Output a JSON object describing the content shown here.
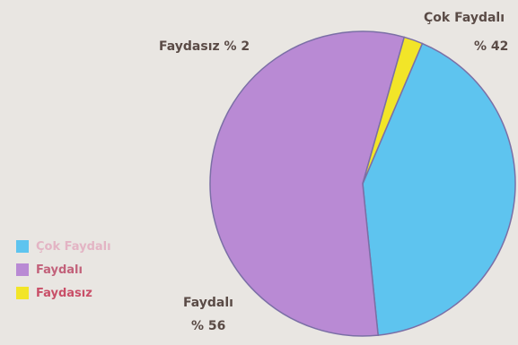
{
  "chart_data": {
    "type": "pie",
    "slices": [
      {
        "label": "Çok Faydalı",
        "value": 42,
        "color": "#5ec4ef",
        "label_text": "Çok Faydalı",
        "percent_text": "% 42"
      },
      {
        "label": "Faydalı",
        "value": 56,
        "color": "#b98ad4",
        "label_text": "Faydalı",
        "percent_text": "% 56"
      },
      {
        "label": "Faydasız",
        "value": 2,
        "color": "#f2e528",
        "label_text": "Faydasız % 2",
        "percent_text": ""
      }
    ],
    "legend": [
      {
        "label": "Çok Faydalı",
        "color": "#5ec4ef",
        "text_color": "#e3b4c4"
      },
      {
        "label": "Faydalı",
        "color": "#b98ad4",
        "text_color": "#c2617a"
      },
      {
        "label": "Faydasız",
        "color": "#f2e528",
        "text_color": "#c94f68"
      }
    ],
    "legend_position": "bottom-left"
  }
}
